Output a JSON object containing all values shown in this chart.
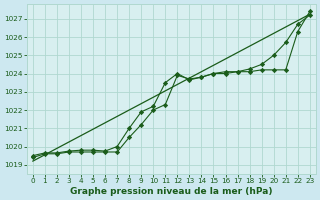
{
  "title": "Graphe pression niveau de la mer (hPa)",
  "background_color": "#cde8f0",
  "plot_bg_color": "#d8eff0",
  "grid_color": "#b0d8d0",
  "line_color": "#1a5c1a",
  "marker_color": "#1a5c1a",
  "xlabel_color": "#1a5c1a",
  "ylim": [
    1018.5,
    1027.8
  ],
  "xlim": [
    -0.5,
    23.5
  ],
  "yticks": [
    1019,
    1020,
    1021,
    1022,
    1023,
    1024,
    1025,
    1026,
    1027
  ],
  "xticks": [
    0,
    1,
    2,
    3,
    4,
    5,
    6,
    7,
    8,
    9,
    10,
    11,
    12,
    13,
    14,
    15,
    16,
    17,
    18,
    19,
    20,
    21,
    22,
    23
  ],
  "series_smooth": [
    1019.2,
    1019.55,
    1019.9,
    1020.25,
    1020.6,
    1020.95,
    1021.3,
    1021.65,
    1022.0,
    1022.35,
    1022.7,
    1023.05,
    1023.4,
    1023.75,
    1024.1,
    1024.45,
    1024.8,
    1025.15,
    1025.5,
    1025.85,
    1026.2,
    1026.55,
    1026.9,
    1027.25
  ],
  "series_marked1": [
    1019.4,
    1019.6,
    1019.6,
    1019.7,
    1019.7,
    1019.7,
    1019.7,
    1019.7,
    1020.5,
    1021.2,
    1022.0,
    1022.3,
    1023.9,
    1023.7,
    1023.8,
    1024.0,
    1024.0,
    1024.1,
    1024.1,
    1024.2,
    1024.2,
    1024.2,
    1026.3,
    1027.4
  ],
  "series_marked2": [
    1019.5,
    1019.65,
    1019.65,
    1019.75,
    1019.8,
    1019.8,
    1019.75,
    1020.0,
    1021.0,
    1021.9,
    1022.2,
    1023.5,
    1024.0,
    1023.65,
    1023.8,
    1024.0,
    1024.1,
    1024.1,
    1024.25,
    1024.5,
    1025.0,
    1025.7,
    1026.7,
    1027.2
  ]
}
